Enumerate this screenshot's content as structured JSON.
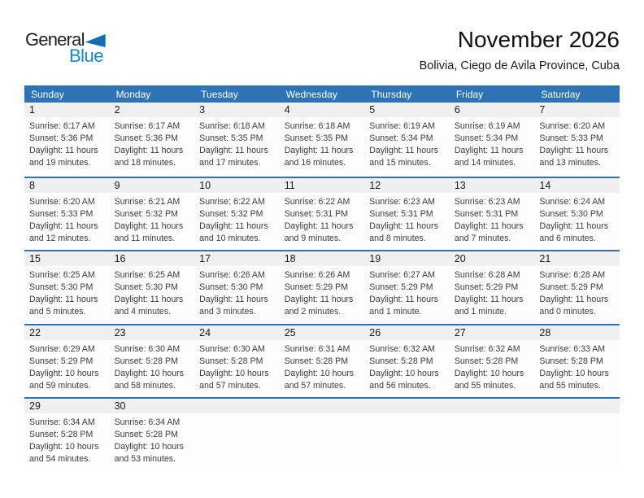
{
  "logo": {
    "part1": "General",
    "part2": "Blue"
  },
  "header": {
    "title": "November 2026",
    "subtitle": "Bolivia, Ciego de Avila Province, Cuba"
  },
  "colors": {
    "header_bg": "#2E74B5",
    "week_divider": "#2E74B5",
    "day_band_bg": "#F0F0F0",
    "logo_blue": "#1389CB"
  },
  "calendar": {
    "weekday_headers": [
      "Sunday",
      "Monday",
      "Tuesday",
      "Wednesday",
      "Thursday",
      "Friday",
      "Saturday"
    ],
    "labels": {
      "sunrise": "Sunrise:",
      "sunset": "Sunset:",
      "daylight": "Daylight:"
    },
    "weeks": [
      [
        {
          "day": "1",
          "sunrise": "6:17 AM",
          "sunset": "5:36 PM",
          "daylight": "11 hours and 19 minutes."
        },
        {
          "day": "2",
          "sunrise": "6:17 AM",
          "sunset": "5:36 PM",
          "daylight": "11 hours and 18 minutes."
        },
        {
          "day": "3",
          "sunrise": "6:18 AM",
          "sunset": "5:35 PM",
          "daylight": "11 hours and 17 minutes."
        },
        {
          "day": "4",
          "sunrise": "6:18 AM",
          "sunset": "5:35 PM",
          "daylight": "11 hours and 16 minutes."
        },
        {
          "day": "5",
          "sunrise": "6:19 AM",
          "sunset": "5:34 PM",
          "daylight": "11 hours and 15 minutes."
        },
        {
          "day": "6",
          "sunrise": "6:19 AM",
          "sunset": "5:34 PM",
          "daylight": "11 hours and 14 minutes."
        },
        {
          "day": "7",
          "sunrise": "6:20 AM",
          "sunset": "5:33 PM",
          "daylight": "11 hours and 13 minutes."
        }
      ],
      [
        {
          "day": "8",
          "sunrise": "6:20 AM",
          "sunset": "5:33 PM",
          "daylight": "11 hours and 12 minutes."
        },
        {
          "day": "9",
          "sunrise": "6:21 AM",
          "sunset": "5:32 PM",
          "daylight": "11 hours and 11 minutes."
        },
        {
          "day": "10",
          "sunrise": "6:22 AM",
          "sunset": "5:32 PM",
          "daylight": "11 hours and 10 minutes."
        },
        {
          "day": "11",
          "sunrise": "6:22 AM",
          "sunset": "5:31 PM",
          "daylight": "11 hours and 9 minutes."
        },
        {
          "day": "12",
          "sunrise": "6:23 AM",
          "sunset": "5:31 PM",
          "daylight": "11 hours and 8 minutes."
        },
        {
          "day": "13",
          "sunrise": "6:23 AM",
          "sunset": "5:31 PM",
          "daylight": "11 hours and 7 minutes."
        },
        {
          "day": "14",
          "sunrise": "6:24 AM",
          "sunset": "5:30 PM",
          "daylight": "11 hours and 6 minutes."
        }
      ],
      [
        {
          "day": "15",
          "sunrise": "6:25 AM",
          "sunset": "5:30 PM",
          "daylight": "11 hours and 5 minutes."
        },
        {
          "day": "16",
          "sunrise": "6:25 AM",
          "sunset": "5:30 PM",
          "daylight": "11 hours and 4 minutes."
        },
        {
          "day": "17",
          "sunrise": "6:26 AM",
          "sunset": "5:30 PM",
          "daylight": "11 hours and 3 minutes."
        },
        {
          "day": "18",
          "sunrise": "6:26 AM",
          "sunset": "5:29 PM",
          "daylight": "11 hours and 2 minutes."
        },
        {
          "day": "19",
          "sunrise": "6:27 AM",
          "sunset": "5:29 PM",
          "daylight": "11 hours and 1 minute."
        },
        {
          "day": "20",
          "sunrise": "6:28 AM",
          "sunset": "5:29 PM",
          "daylight": "11 hours and 1 minute."
        },
        {
          "day": "21",
          "sunrise": "6:28 AM",
          "sunset": "5:29 PM",
          "daylight": "11 hours and 0 minutes."
        }
      ],
      [
        {
          "day": "22",
          "sunrise": "6:29 AM",
          "sunset": "5:29 PM",
          "daylight": "10 hours and 59 minutes."
        },
        {
          "day": "23",
          "sunrise": "6:30 AM",
          "sunset": "5:28 PM",
          "daylight": "10 hours and 58 minutes."
        },
        {
          "day": "24",
          "sunrise": "6:30 AM",
          "sunset": "5:28 PM",
          "daylight": "10 hours and 57 minutes."
        },
        {
          "day": "25",
          "sunrise": "6:31 AM",
          "sunset": "5:28 PM",
          "daylight": "10 hours and 57 minutes."
        },
        {
          "day": "26",
          "sunrise": "6:32 AM",
          "sunset": "5:28 PM",
          "daylight": "10 hours and 56 minutes."
        },
        {
          "day": "27",
          "sunrise": "6:32 AM",
          "sunset": "5:28 PM",
          "daylight": "10 hours and 55 minutes."
        },
        {
          "day": "28",
          "sunrise": "6:33 AM",
          "sunset": "5:28 PM",
          "daylight": "10 hours and 55 minutes."
        }
      ],
      [
        {
          "day": "29",
          "sunrise": "6:34 AM",
          "sunset": "5:28 PM",
          "daylight": "10 hours and 54 minutes."
        },
        {
          "day": "30",
          "sunrise": "6:34 AM",
          "sunset": "5:28 PM",
          "daylight": "10 hours and 53 minutes."
        },
        null,
        null,
        null,
        null,
        null
      ]
    ]
  }
}
